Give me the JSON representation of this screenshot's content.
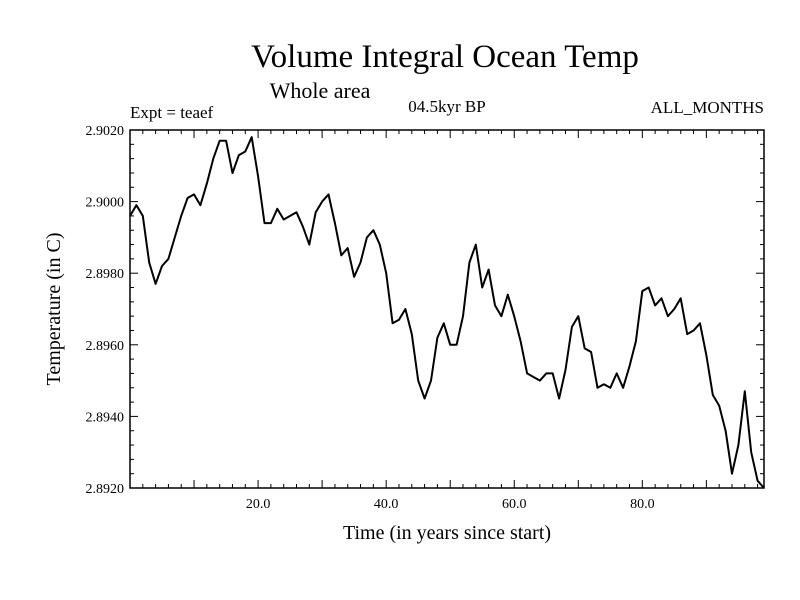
{
  "chart_data": {
    "type": "line",
    "title": "Volume Integral Ocean Temp",
    "subtitle": "Whole area",
    "left_label": "Expt = teaef",
    "center_label": "04.5kyr BP",
    "right_label": "ALL_MONTHS",
    "xlabel": "Time (in years since start)",
    "ylabel": "Temperature (in C)",
    "xlim": [
      0,
      99
    ],
    "ylim": [
      2.892,
      2.902
    ],
    "x_ticks": [
      20,
      40,
      60,
      80
    ],
    "x_tick_labels": [
      "20.0",
      "40.0",
      "60.0",
      "80.0"
    ],
    "y_ticks": [
      2.892,
      2.894,
      2.896,
      2.898,
      2.9,
      2.902
    ],
    "y_tick_labels": [
      "2.8920",
      "2.8940",
      "2.8960",
      "2.8980",
      "2.9000",
      "2.9020"
    ],
    "series": [
      {
        "name": "teaef",
        "x": [
          0,
          1,
          2,
          3,
          4,
          5,
          6,
          7,
          8,
          9,
          10,
          11,
          12,
          13,
          14,
          15,
          16,
          17,
          18,
          19,
          20,
          21,
          22,
          23,
          24,
          25,
          26,
          27,
          28,
          29,
          30,
          31,
          32,
          33,
          34,
          35,
          36,
          37,
          38,
          39,
          40,
          41,
          42,
          43,
          44,
          45,
          46,
          47,
          48,
          49,
          50,
          51,
          52,
          53,
          54,
          55,
          56,
          57,
          58,
          59,
          60,
          61,
          62,
          63,
          64,
          65,
          66,
          67,
          68,
          69,
          70,
          71,
          72,
          73,
          74,
          75,
          76,
          77,
          78,
          79,
          80,
          81,
          82,
          83,
          84,
          85,
          86,
          87,
          88,
          89,
          90,
          91,
          92,
          93,
          94,
          95,
          96,
          97,
          98,
          99
        ],
        "values": [
          2.8996,
          2.8999,
          2.8996,
          2.8983,
          2.8977,
          2.8982,
          2.8984,
          2.899,
          2.8996,
          2.9001,
          2.9002,
          2.8999,
          2.9005,
          2.9012,
          2.9017,
          2.9017,
          2.9008,
          2.9013,
          2.9014,
          2.9018,
          2.9007,
          2.8994,
          2.8994,
          2.8998,
          2.8995,
          2.8996,
          2.8997,
          2.8993,
          2.8988,
          2.8997,
          2.9,
          2.9002,
          2.8994,
          2.8985,
          2.8987,
          2.8979,
          2.8983,
          2.899,
          2.8992,
          2.8988,
          2.898,
          2.8966,
          2.8967,
          2.897,
          2.8963,
          2.895,
          2.8945,
          2.895,
          2.8962,
          2.8966,
          2.896,
          2.896,
          2.8968,
          2.8983,
          2.8988,
          2.8976,
          2.8981,
          2.8971,
          2.8968,
          2.8974,
          2.8968,
          2.8961,
          2.8952,
          2.8951,
          2.895,
          2.8952,
          2.8952,
          2.8945,
          2.8953,
          2.8965,
          2.8968,
          2.8959,
          2.8958,
          2.8948,
          2.8949,
          2.8948,
          2.8952,
          2.8948,
          2.8954,
          2.8961,
          2.8975,
          2.8976,
          2.8971,
          2.8973,
          2.8968,
          2.897,
          2.8973,
          2.8963,
          2.8964,
          2.8966,
          2.8957,
          2.8946,
          2.8943,
          2.8936,
          2.8924,
          2.8932,
          2.8947,
          2.893,
          2.8922,
          2.892
        ]
      }
    ]
  }
}
